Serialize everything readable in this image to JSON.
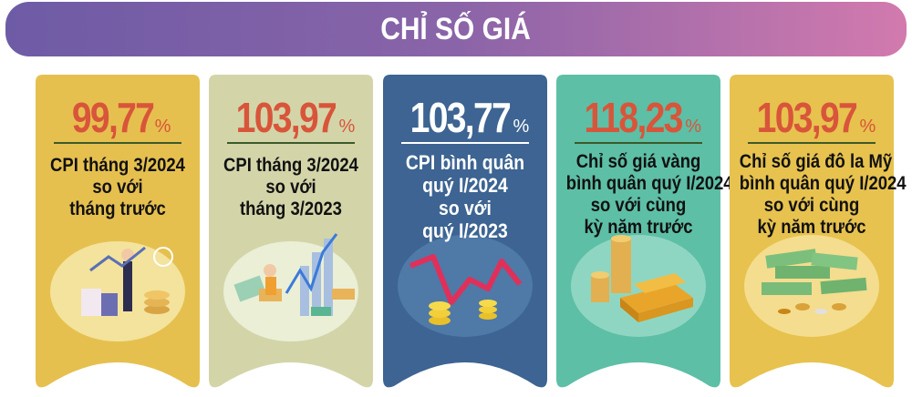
{
  "header": {
    "title": "CHỈ SỐ GIÁ"
  },
  "cards": [
    {
      "value": "99,77",
      "unit": "%",
      "lines": [
        "CPI tháng 3/2024",
        "so với",
        "tháng trước"
      ],
      "bg": "#e6c04f",
      "value_color": "#d8553a",
      "text_color": "#111111",
      "illustration": "shopping-person-chart-illustration"
    },
    {
      "value": "103,97",
      "unit": "%",
      "lines": [
        "CPI tháng 3/2024",
        "so với",
        "tháng 3/2023"
      ],
      "bg": "#d3d5a9",
      "value_color": "#d8553a",
      "text_color": "#111111",
      "illustration": "person-laptop-growth-chart-illustration"
    },
    {
      "value": "103,77",
      "unit": "%",
      "lines": [
        "CPI bình quân",
        "quý I/2024",
        "so với",
        "quý I/2023"
      ],
      "bg": "#3d6492",
      "value_color": "#ffffff",
      "text_color": "#ffffff",
      "illustration": "zigzag-arrow-coins-illustration"
    },
    {
      "value": "118,23",
      "unit": "%",
      "lines": [
        "Chỉ số giá vàng",
        "bình quân quý I/2024",
        "so với cùng",
        "kỳ năm trước"
      ],
      "bg": "#5dbfa6",
      "value_color": "#d8553a",
      "text_color": "#111111",
      "illustration": "gold-bars-coins-illustration"
    },
    {
      "value": "103,97",
      "unit": "%",
      "lines": [
        "Chỉ số giá đô la Mỹ",
        "bình quân quý I/2024",
        "so với cùng",
        "kỳ năm trước"
      ],
      "bg": "#e7c24e",
      "value_color": "#d8553a",
      "text_color": "#111111",
      "illustration": "dollar-bills-coins-illustration"
    }
  ]
}
